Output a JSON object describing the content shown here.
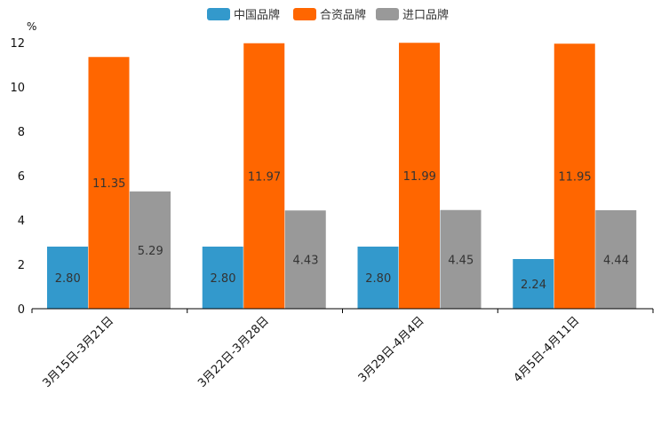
{
  "chart_data": {
    "type": "bar",
    "title": "",
    "xlabel": "",
    "ylabel": "%",
    "ylim": [
      0,
      12
    ],
    "yticks": [
      "0",
      "2",
      "4",
      "6",
      "8",
      "10",
      "12"
    ],
    "categories": [
      "3月15日-3月21日",
      "3月22日-3月28日",
      "3月29日-4月4日",
      "4月5日-4月11日"
    ],
    "series": [
      {
        "name": "中国品牌",
        "color": "#3399cc",
        "values": [
          2.8,
          2.8,
          2.8,
          2.24
        ],
        "labels": [
          "2.80",
          "2.80",
          "2.80",
          "2.24"
        ]
      },
      {
        "name": "合资品牌",
        "color": "#ff6600",
        "values": [
          11.35,
          11.97,
          11.99,
          11.95
        ],
        "labels": [
          "11.35",
          "11.97",
          "11.99",
          "11.95"
        ]
      },
      {
        "name": "进口品牌",
        "color": "#999999",
        "values": [
          5.29,
          4.43,
          4.45,
          4.44
        ],
        "labels": [
          "5.29",
          "4.43",
          "4.45",
          "4.44"
        ]
      }
    ],
    "legend_position": "top-center",
    "grid": false
  }
}
